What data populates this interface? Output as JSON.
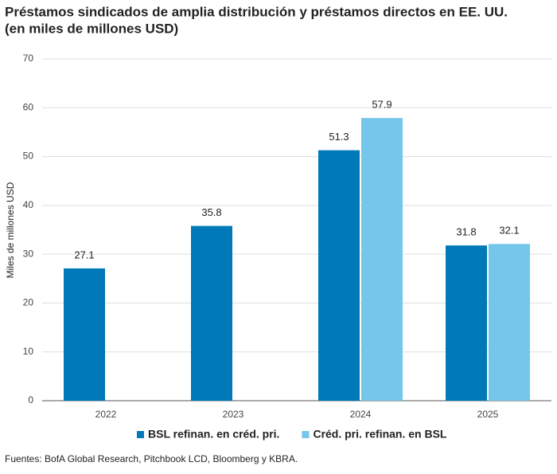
{
  "chart_data": {
    "type": "bar",
    "title": "Préstamos sindicados de amplia distribución y préstamos directos en EE. UU.",
    "subtitle": "(en miles de millones USD)",
    "y_label": "Miles de millones USD",
    "source": "Fuentes: BofA Global Research, Pitchbook LCD, Bloomberg y KBRA.",
    "categories": [
      "2022",
      "2023",
      "2024",
      "2025"
    ],
    "series": [
      {
        "name": "BSL refinan. en créd. pri.",
        "color": "#0079b8",
        "values": [
          27.1,
          35.8,
          51.3,
          31.8
        ]
      },
      {
        "name": "Créd. pri. refinan. en BSL",
        "color": "#74c6ea",
        "values": [
          null,
          null,
          57.9,
          32.1
        ]
      }
    ],
    "ylim": [
      0,
      70
    ],
    "yticks": [
      0,
      10,
      20,
      30,
      40,
      50,
      60,
      70
    ],
    "grid": true,
    "legend": "bottom"
  }
}
